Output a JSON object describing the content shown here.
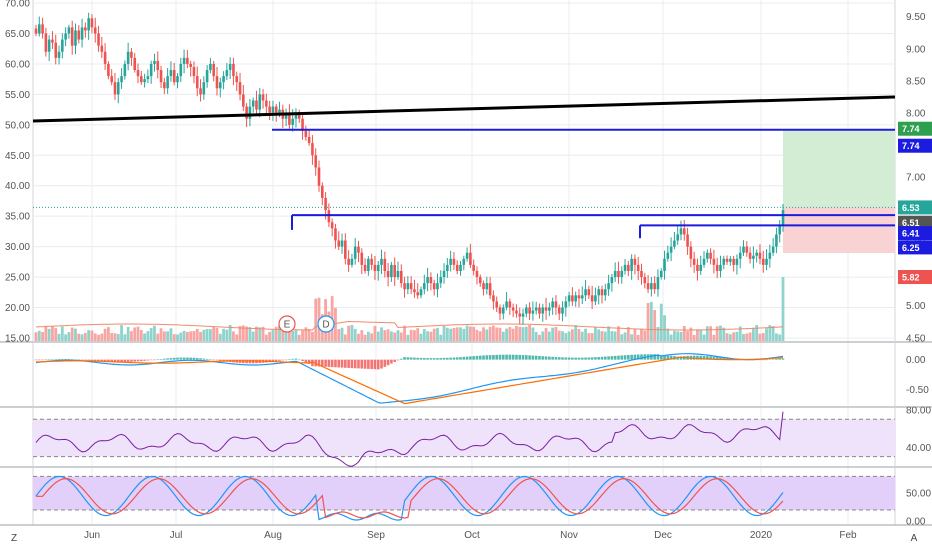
{
  "colors": {
    "up": "#26a69a",
    "down": "#ef5350",
    "vol_up": "#8fd3cc",
    "vol_down": "#f6a6a3",
    "grid": "#e9ecf1",
    "axis_text": "#555555",
    "trendline": "#000000",
    "hline": "#1c1ce0",
    "target_zone": "#d3ecd4",
    "stop_zone": "#f9d3d3",
    "macd_line": "#2196f3",
    "signal_line": "#ff6d00",
    "rsi_line": "#7b1fa2",
    "rsi_band": "#efe3fb",
    "stoch_k": "#2196f3",
    "stoch_d": "#ef5350",
    "stoch_band": "#e3d0fa"
  },
  "bottom_bar": {
    "left_icon": "Z",
    "right_icon": "A"
  },
  "chart_data": [
    {
      "type": "candlestick",
      "name": "price",
      "x_labels": [
        "Jun",
        "Jul",
        "Aug",
        "Sep",
        "Oct",
        "Nov",
        "Dec",
        "2020",
        "Feb"
      ],
      "left_axis": {
        "ticks": [
          "70.00",
          "65.00",
          "60.00",
          "55.00",
          "50.00",
          "45.00",
          "40.00",
          "35.00",
          "30.00",
          "25.00",
          "20.00",
          "15.00"
        ],
        "range": [
          14.5,
          70.5
        ]
      },
      "right_axis": {
        "ticks": [
          "9.50",
          "9.00",
          "8.50",
          "8.00",
          "7.50",
          "7.00",
          "6.50",
          "6.00",
          "5.50",
          "5.00",
          "4.50"
        ],
        "range": [
          4.45,
          9.76
        ]
      },
      "closes_left_scale": [
        65,
        66.5,
        65,
        62,
        64,
        63.5,
        61,
        62,
        64,
        65,
        66,
        63,
        65.5,
        64,
        66,
        65.5,
        67.5,
        66,
        65,
        63,
        62,
        60,
        58,
        57,
        55,
        57,
        58,
        60,
        62,
        61,
        59,
        58,
        57,
        57.5,
        58,
        60,
        60.5,
        59,
        57,
        56,
        58,
        59,
        57,
        58,
        60,
        61,
        60,
        59.5,
        58,
        56,
        55,
        57,
        59,
        60,
        58,
        56,
        57,
        58,
        59,
        60,
        58,
        57,
        55,
        53,
        51,
        53,
        54,
        52.5,
        55,
        54,
        53,
        52,
        53,
        52,
        52.5,
        51,
        52,
        50,
        51,
        52,
        51,
        49,
        48,
        47,
        45,
        43,
        40,
        38,
        36,
        34,
        33,
        31,
        30,
        31,
        28,
        27,
        28,
        30,
        29,
        27,
        26,
        28,
        27,
        26,
        27,
        28,
        26,
        25,
        27,
        25,
        26,
        24,
        23,
        24,
        23,
        22.5,
        22,
        23,
        24,
        25,
        24,
        23,
        24,
        25,
        26,
        27,
        28,
        27,
        26,
        27,
        28,
        29,
        27,
        26,
        25,
        24,
        23,
        24,
        22,
        21,
        20,
        19,
        20,
        21,
        20,
        19.5,
        19,
        18.5,
        19,
        20,
        19,
        19.5,
        20,
        19,
        20,
        19.5,
        20,
        21,
        20,
        19,
        20,
        21,
        22,
        21,
        22,
        21.5,
        22,
        23,
        22,
        21,
        22,
        23,
        22,
        23,
        24,
        25,
        26,
        25,
        26,
        27,
        26,
        28,
        27,
        26,
        25,
        24,
        23,
        24,
        23,
        25,
        26,
        28,
        29,
        30,
        31,
        32,
        33,
        32,
        30,
        28,
        27,
        26,
        27,
        28,
        29,
        28,
        27,
        26,
        27,
        28,
        27.5,
        28,
        27,
        28,
        29,
        30,
        29,
        28,
        28.5,
        29,
        28,
        27,
        28,
        29,
        30,
        32,
        33.5,
        36
      ]
    },
    {
      "type": "bar",
      "name": "volume",
      "markers": [
        "E",
        "D"
      ]
    },
    {
      "type": "line",
      "name": "MACD",
      "right_axis": {
        "ticks": [
          "0.00",
          "-0.50"
        ],
        "range": [
          -0.78,
          0.28
        ]
      }
    },
    {
      "type": "line",
      "name": "RSI",
      "right_axis": {
        "ticks": [
          "80.00",
          "40.00"
        ],
        "range": [
          20,
          82
        ]
      },
      "bands": [
        70,
        30
      ]
    },
    {
      "type": "line",
      "name": "Stochastic",
      "right_axis": {
        "ticks": [
          "50.00",
          "0.00"
        ],
        "range": [
          -5,
          95
        ]
      },
      "bands": [
        80,
        20
      ]
    }
  ],
  "price_tags": [
    {
      "value": "7.74",
      "bg": "#2e9e4f"
    },
    {
      "value": "7.74",
      "bg": "#1c1ce0"
    },
    {
      "value": "6.53",
      "bg": "#26a69a"
    },
    {
      "value": "6.51",
      "bg": "#555555"
    },
    {
      "value": "6.41",
      "bg": "#1c1ce0"
    },
    {
      "value": "6.25",
      "bg": "#1c1ce0"
    },
    {
      "value": "5.82",
      "bg": "#ef5350"
    }
  ]
}
